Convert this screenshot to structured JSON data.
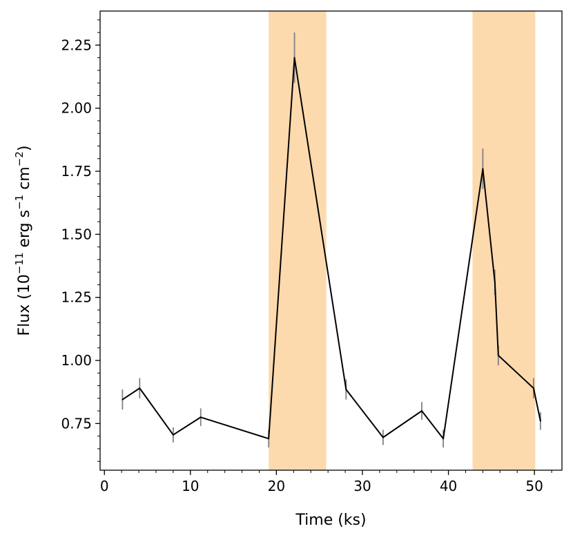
{
  "chart_data": {
    "type": "line",
    "xlabel": "Time (ks)",
    "ylabel_parts": {
      "prefix": "Flux (10",
      "exp1": "−11",
      "middle": " erg s",
      "exp2": "−1",
      "middle2": " cm",
      "exp3": "−2",
      "suffix": ")"
    },
    "xlim": [
      -0.5,
      53.2
    ],
    "ylim": [
      0.565,
      2.385
    ],
    "x_ticks": [
      0,
      10,
      20,
      30,
      40,
      50
    ],
    "x_tick_labels": [
      "0",
      "10",
      "20",
      "30",
      "40",
      "50"
    ],
    "y_ticks": [
      0.75,
      1.0,
      1.25,
      1.5,
      1.75,
      2.0,
      2.25
    ],
    "y_tick_labels": [
      "0.75",
      "1.00",
      "1.25",
      "1.50",
      "1.75",
      "2.00",
      "2.25"
    ],
    "x_minor_step": 2,
    "y_minor_step": 0.05,
    "grid": false,
    "highlight_color": "#fdd9ae",
    "line_color": "#000000",
    "error_color": "#808080",
    "highlight_regions": [
      {
        "x0": 19.1,
        "x1": 25.8
      },
      {
        "x0": 42.8,
        "x1": 50.1
      }
    ],
    "series": [
      {
        "x": [
          2.1,
          4.1,
          8.0,
          11.2,
          19.1,
          22.1,
          28.1,
          32.4,
          36.9,
          39.4,
          44.0,
          45.4,
          45.8,
          49.9,
          50.7
        ],
        "y": [
          0.845,
          0.89,
          0.705,
          0.775,
          0.69,
          2.2,
          0.885,
          0.695,
          0.8,
          0.69,
          1.76,
          1.31,
          1.02,
          0.89,
          0.76
        ],
        "yerr": [
          0.04,
          0.04,
          0.03,
          0.035,
          0.035,
          0.1,
          0.04,
          0.03,
          0.035,
          0.035,
          0.08,
          0.05,
          0.04,
          0.04,
          0.035
        ]
      }
    ]
  }
}
